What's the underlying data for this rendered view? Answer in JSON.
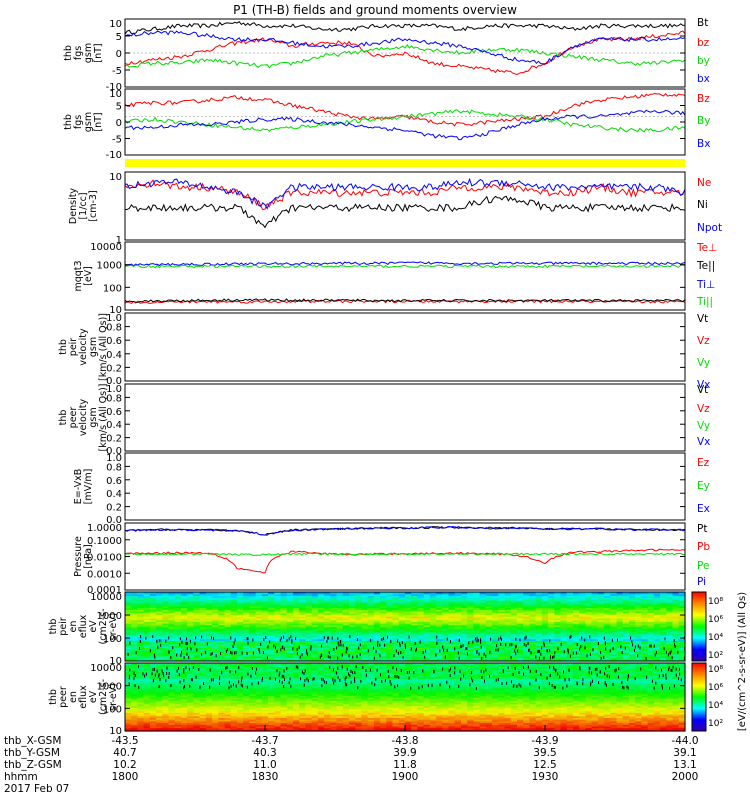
{
  "title": "P1 (TH-B) fields and ground moments overview",
  "colors": {
    "black": "#000000",
    "red": "#ff0000",
    "green": "#00dd00",
    "blue": "#0000ff",
    "yellow": "#ffff00"
  },
  "chart_data": [
    {
      "type": "line",
      "id": "fgs",
      "ylabel": [
        "thb",
        "fgs",
        "gsm",
        "[nT]"
      ],
      "ylim": [
        -10,
        10
      ],
      "ticks": [
        "10",
        "5",
        "0",
        "-5",
        "-10"
      ],
      "series": [
        {
          "name": "Bt",
          "color": "#000000",
          "values": [
            6,
            7,
            8,
            8,
            9,
            8,
            8,
            7,
            7,
            8,
            8,
            8,
            7,
            8,
            8,
            8,
            7,
            8,
            8,
            8,
            8
          ]
        },
        {
          "name": "bz",
          "color": "#ff0000",
          "values": [
            -3,
            -2,
            -1,
            1,
            3,
            4,
            2,
            3,
            3,
            -1,
            0,
            -3,
            -4,
            -5,
            -6,
            -3,
            2,
            4,
            4,
            5,
            6
          ]
        },
        {
          "name": "by",
          "color": "#00dd00",
          "values": [
            -4,
            -3,
            -3,
            -2,
            -3,
            -4,
            -3,
            -1,
            0,
            1,
            2,
            1,
            0,
            1,
            1,
            0,
            -1,
            -2,
            -3,
            -3,
            -2
          ]
        },
        {
          "name": "bx",
          "color": "#0000ff",
          "values": [
            5,
            6,
            6,
            5,
            4,
            4,
            3,
            2,
            2,
            3,
            4,
            3,
            2,
            0,
            -2,
            -3,
            2,
            4,
            4,
            4,
            4
          ]
        }
      ]
    },
    {
      "type": "line",
      "id": "fgm",
      "ylabel": [
        "thb",
        "fgs",
        "gsm",
        "[nT]"
      ],
      "ylim": [
        -14,
        10
      ],
      "ticks": [
        "10",
        "5",
        "0",
        "-5",
        "-10"
      ],
      "series": [
        {
          "name": "Bz",
          "color": "#ff0000",
          "values": [
            4,
            5,
            5,
            6,
            7,
            6,
            4,
            2,
            0,
            -1,
            0,
            -2,
            -3,
            -2,
            -1,
            0,
            4,
            6,
            7,
            8,
            8
          ]
        },
        {
          "name": "By",
          "color": "#00dd00",
          "values": [
            -2,
            -1,
            -2,
            -3,
            -4,
            -5,
            -4,
            -3,
            -2,
            -1,
            0,
            1,
            2,
            1,
            0,
            -1,
            -3,
            -4,
            -5,
            -5,
            -4
          ]
        },
        {
          "name": "Bx",
          "color": "#0000ff",
          "values": [
            -4,
            -4,
            -3,
            -3,
            -2,
            -1,
            -1,
            -2,
            -3,
            -4,
            -5,
            -7,
            -8,
            -6,
            -3,
            -1,
            0,
            0,
            1,
            2,
            1
          ]
        }
      ]
    },
    {
      "type": "line",
      "id": "density",
      "ylabel": [
        "Density",
        "[1/cc]",
        "[cm-3]"
      ],
      "ylim": [
        1,
        10
      ],
      "scale": "log",
      "ticks": [
        "10",
        "1"
      ],
      "series": [
        {
          "name": "Ne",
          "color": "#ff0000",
          "values": [
            6,
            7,
            6,
            6,
            5,
            3,
            5,
            5,
            5,
            5,
            5,
            5,
            6,
            6,
            6,
            5,
            5,
            6,
            5,
            5,
            5
          ]
        },
        {
          "name": "Ni",
          "color": "#000000",
          "values": [
            3,
            3,
            3,
            3,
            3,
            1.5,
            3,
            3,
            3,
            3,
            3,
            3,
            3,
            4,
            4,
            3,
            3,
            3,
            3,
            3,
            3
          ]
        },
        {
          "name": "Npot",
          "color": "#0000ff",
          "values": [
            6,
            7,
            7,
            6,
            5,
            3,
            6,
            6,
            6,
            6,
            6,
            6,
            7,
            7,
            7,
            6,
            6,
            6,
            6,
            6,
            5
          ]
        }
      ]
    },
    {
      "type": "line",
      "id": "temp",
      "ylabel": [
        "mqqt3",
        "[eV]"
      ],
      "ylim": [
        10,
        10000
      ],
      "scale": "log",
      "ticks": [
        "10000",
        "1000",
        "100",
        "10"
      ],
      "series": [
        {
          "name": "Te⊥",
          "color": "#ff0000",
          "values": [
            22,
            22,
            23,
            23,
            23,
            23,
            24,
            24,
            24,
            24,
            24,
            24,
            24,
            24,
            24,
            24,
            24,
            23,
            23,
            23,
            23
          ]
        },
        {
          "name": "Te||",
          "color": "#000000",
          "values": [
            25,
            25,
            26,
            27,
            28,
            28,
            27,
            27,
            27,
            26,
            26,
            26,
            26,
            26,
            26,
            26,
            26,
            26,
            26,
            26,
            26
          ]
        },
        {
          "name": "Ti⊥",
          "color": "#0000ff",
          "values": [
            1000,
            1000,
            1050,
            1050,
            1100,
            1100,
            1100,
            1150,
            1150,
            1150,
            1200,
            1200,
            1150,
            1150,
            1150,
            1150,
            1150,
            1150,
            1150,
            1150,
            1150
          ]
        },
        {
          "name": "Ti||",
          "color": "#00dd00",
          "values": [
            850,
            850,
            850,
            850,
            850,
            850,
            850,
            850,
            850,
            850,
            850,
            850,
            850,
            850,
            850,
            850,
            850,
            850,
            850,
            850,
            850
          ]
        }
      ]
    },
    {
      "type": "line",
      "id": "peir",
      "ylabel": [
        "thb",
        "peir",
        "velocity",
        "gsm",
        "[km/s (All Qs)]"
      ],
      "ylim": [
        0,
        1
      ],
      "ticks": [
        "1.0",
        "0.8",
        "0.6",
        "0.4",
        "0.2",
        "0.0"
      ],
      "series": [
        {
          "name": "Vt",
          "color": "#000000",
          "values": []
        },
        {
          "name": "Vz",
          "color": "#ff0000",
          "values": []
        },
        {
          "name": "Vy",
          "color": "#00dd00",
          "values": []
        },
        {
          "name": "Vx",
          "color": "#0000ff",
          "values": []
        }
      ]
    },
    {
      "type": "line",
      "id": "peer",
      "ylabel": [
        "thb",
        "peer",
        "velocity",
        "gsm",
        "[km/s (All Qs)]"
      ],
      "ylim": [
        0,
        1
      ],
      "ticks": [
        "1.0",
        "0.8",
        "0.6",
        "0.4",
        "0.2",
        "0.0"
      ],
      "series": [
        {
          "name": "Vt",
          "color": "#000000",
          "values": []
        },
        {
          "name": "Vz",
          "color": "#ff0000",
          "values": []
        },
        {
          "name": "Vy",
          "color": "#00dd00",
          "values": []
        },
        {
          "name": "Vx",
          "color": "#0000ff",
          "values": []
        }
      ]
    },
    {
      "type": "line",
      "id": "efield",
      "ylabel": [
        "E=-VxB",
        "[mV/m]"
      ],
      "ylim": [
        0,
        1
      ],
      "ticks": [
        "1.0",
        "0.8",
        "0.6",
        "0.4",
        "0.2",
        "0.0"
      ],
      "series": [
        {
          "name": "Ez",
          "color": "#ff0000",
          "values": []
        },
        {
          "name": "Ey",
          "color": "#00dd00",
          "values": []
        },
        {
          "name": "Ex",
          "color": "#0000ff",
          "values": []
        }
      ]
    },
    {
      "type": "line",
      "id": "pressure",
      "ylabel": [
        "Pressure",
        "[nPa]"
      ],
      "ylim": [
        0.0001,
        1
      ],
      "scale": "log",
      "ticks": [
        "1.0000",
        "0.1000",
        "0.0100",
        "0.0010",
        "0.0001"
      ],
      "series": [
        {
          "name": "Pt",
          "color": "#000000",
          "values": [
            0.35,
            0.4,
            0.4,
            0.38,
            0.35,
            0.2,
            0.38,
            0.42,
            0.45,
            0.5,
            0.5,
            0.55,
            0.55,
            0.5,
            0.5,
            0.45,
            0.45,
            0.45,
            0.4,
            0.4,
            0.38
          ]
        },
        {
          "name": "Pb",
          "color": "#ff0000",
          "values": [
            0.015,
            0.016,
            0.017,
            0.016,
            0.002,
            0.001,
            0.02,
            0.015,
            0.013,
            0.014,
            0.015,
            0.015,
            0.016,
            0.015,
            0.012,
            0.004,
            0.018,
            0.02,
            0.022,
            0.025,
            0.024
          ]
        },
        {
          "name": "Pe",
          "color": "#00dd00",
          "values": [
            0.014,
            0.014,
            0.014,
            0.014,
            0.013,
            0.013,
            0.014,
            0.014,
            0.014,
            0.014,
            0.014,
            0.014,
            0.014,
            0.014,
            0.014,
            0.014,
            0.014,
            0.014,
            0.014,
            0.014,
            0.014
          ]
        },
        {
          "name": "Pi",
          "color": "#0000ff",
          "values": [
            0.35,
            0.4,
            0.4,
            0.38,
            0.35,
            0.2,
            0.38,
            0.42,
            0.45,
            0.5,
            0.5,
            0.55,
            0.55,
            0.5,
            0.5,
            0.45,
            0.45,
            0.45,
            0.4,
            0.4,
            0.38
          ]
        }
      ]
    },
    {
      "type": "heatmap",
      "id": "peir-spec",
      "ylabel": [
        "thb",
        "peir",
        "en",
        "eflux",
        "eV",
        "(cm2-s-",
        "sr-eV)"
      ],
      "ylim": [
        5,
        30000
      ],
      "scale": "log",
      "ticks": [
        "10000",
        "1000",
        "100",
        "10"
      ]
    },
    {
      "type": "heatmap",
      "id": "peer-spec",
      "ylabel": [
        "thb",
        "peer",
        "en",
        "eflux",
        "eV",
        "(cm2-s-",
        "sr-eV)"
      ],
      "ylim": [
        5,
        30000
      ],
      "scale": "log",
      "ticks": [
        "10000",
        "1000",
        "100",
        "10"
      ]
    }
  ],
  "colorbar": {
    "label": "[eV/(cm^2-s-sr-eV)] (All Qs)",
    "ticks": [
      "10⁸",
      "10⁶",
      "10⁴",
      "10²"
    ]
  },
  "xaxis": {
    "row_labels": [
      "thb_X-GSM",
      "thb_Y-GSM",
      "thb_Z-GSM",
      "hhmm",
      "2017 Feb 07"
    ],
    "columns": [
      [
        "-43.5",
        "40.7",
        "10.2",
        "1800"
      ],
      [
        "-43.7",
        "40.3",
        "11.0",
        "1830"
      ],
      [
        "-43.8",
        "39.9",
        "11.8",
        "1900"
      ],
      [
        "-43.9",
        "39.5",
        "12.5",
        "1930"
      ],
      [
        "-44.0",
        "39.1",
        "13.1",
        "2000"
      ]
    ]
  }
}
